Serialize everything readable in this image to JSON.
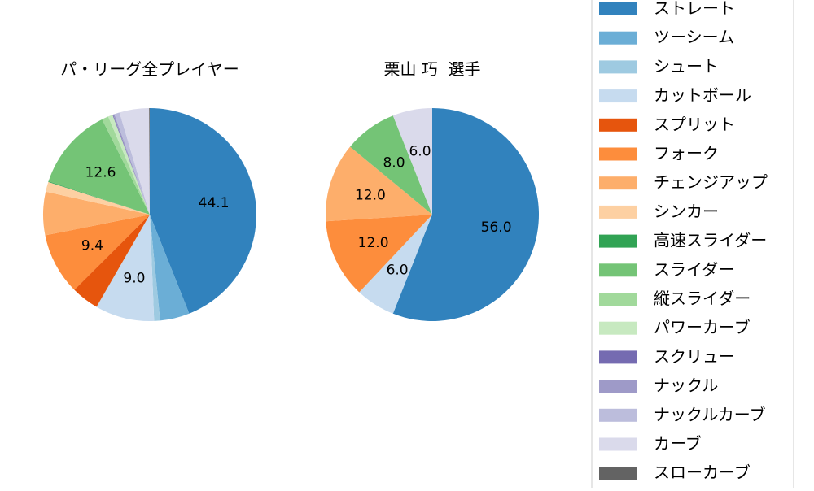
{
  "chart_data": [
    {
      "type": "pie",
      "title": "パ・リーグ全プレイヤー",
      "slices": [
        {
          "name": "ストレート",
          "value": 44.1,
          "label": "44.1"
        },
        {
          "name": "ツーシーム",
          "value": 4.5,
          "label": ""
        },
        {
          "name": "シュート",
          "value": 0.9,
          "label": ""
        },
        {
          "name": "カットボール",
          "value": 9.0,
          "label": "9.0"
        },
        {
          "name": "スプリット",
          "value": 4.2,
          "label": ""
        },
        {
          "name": "フォーク",
          "value": 9.4,
          "label": "9.4"
        },
        {
          "name": "チェンジアップ",
          "value": 6.6,
          "label": ""
        },
        {
          "name": "シンカー",
          "value": 1.5,
          "label": ""
        },
        {
          "name": "高速スライダー",
          "value": 0.1,
          "label": ""
        },
        {
          "name": "スライダー",
          "value": 12.6,
          "label": "12.6"
        },
        {
          "name": "縦スライダー",
          "value": 1.0,
          "label": ""
        },
        {
          "name": "パワーカーブ",
          "value": 0.7,
          "label": ""
        },
        {
          "name": "スクリュー",
          "value": 0.1,
          "label": ""
        },
        {
          "name": "ナックル",
          "value": 0.2,
          "label": ""
        },
        {
          "name": "ナックルカーブ",
          "value": 0.8,
          "label": ""
        },
        {
          "name": "カーブ",
          "value": 4.5,
          "label": ""
        },
        {
          "name": "スローカーブ",
          "value": 0.1,
          "label": ""
        }
      ]
    },
    {
      "type": "pie",
      "title": "栗山 巧  選手",
      "slices": [
        {
          "name": "ストレート",
          "value": 56.0,
          "label": "56.0"
        },
        {
          "name": "カットボール",
          "value": 6.0,
          "label": "6.0"
        },
        {
          "name": "フォーク",
          "value": 12.0,
          "label": "12.0"
        },
        {
          "name": "チェンジアップ",
          "value": 12.0,
          "label": "12.0"
        },
        {
          "name": "スライダー",
          "value": 8.0,
          "label": "8.0"
        },
        {
          "name": "カーブ",
          "value": 6.0,
          "label": "6.0"
        }
      ]
    }
  ],
  "legend": {
    "placement": "right",
    "items": [
      {
        "label": "ストレート",
        "color": "#3182bd"
      },
      {
        "label": "ツーシーム",
        "color": "#6baed6"
      },
      {
        "label": "シュート",
        "color": "#9ecae1"
      },
      {
        "label": "カットボール",
        "color": "#c6dbef"
      },
      {
        "label": "スプリット",
        "color": "#e6550d"
      },
      {
        "label": "フォーク",
        "color": "#fd8d3c"
      },
      {
        "label": "チェンジアップ",
        "color": "#fdae6b"
      },
      {
        "label": "シンカー",
        "color": "#fdd0a2"
      },
      {
        "label": "高速スライダー",
        "color": "#31a354"
      },
      {
        "label": "スライダー",
        "color": "#74c476"
      },
      {
        "label": "縦スライダー",
        "color": "#a1d99b"
      },
      {
        "label": "パワーカーブ",
        "color": "#c7e9c0"
      },
      {
        "label": "スクリュー",
        "color": "#756bb1"
      },
      {
        "label": "ナックル",
        "color": "#9e9ac8"
      },
      {
        "label": "ナックルカーブ",
        "color": "#bcbddc"
      },
      {
        "label": "カーブ",
        "color": "#dadaeb"
      },
      {
        "label": "スローカーブ",
        "color": "#636363"
      }
    ]
  }
}
